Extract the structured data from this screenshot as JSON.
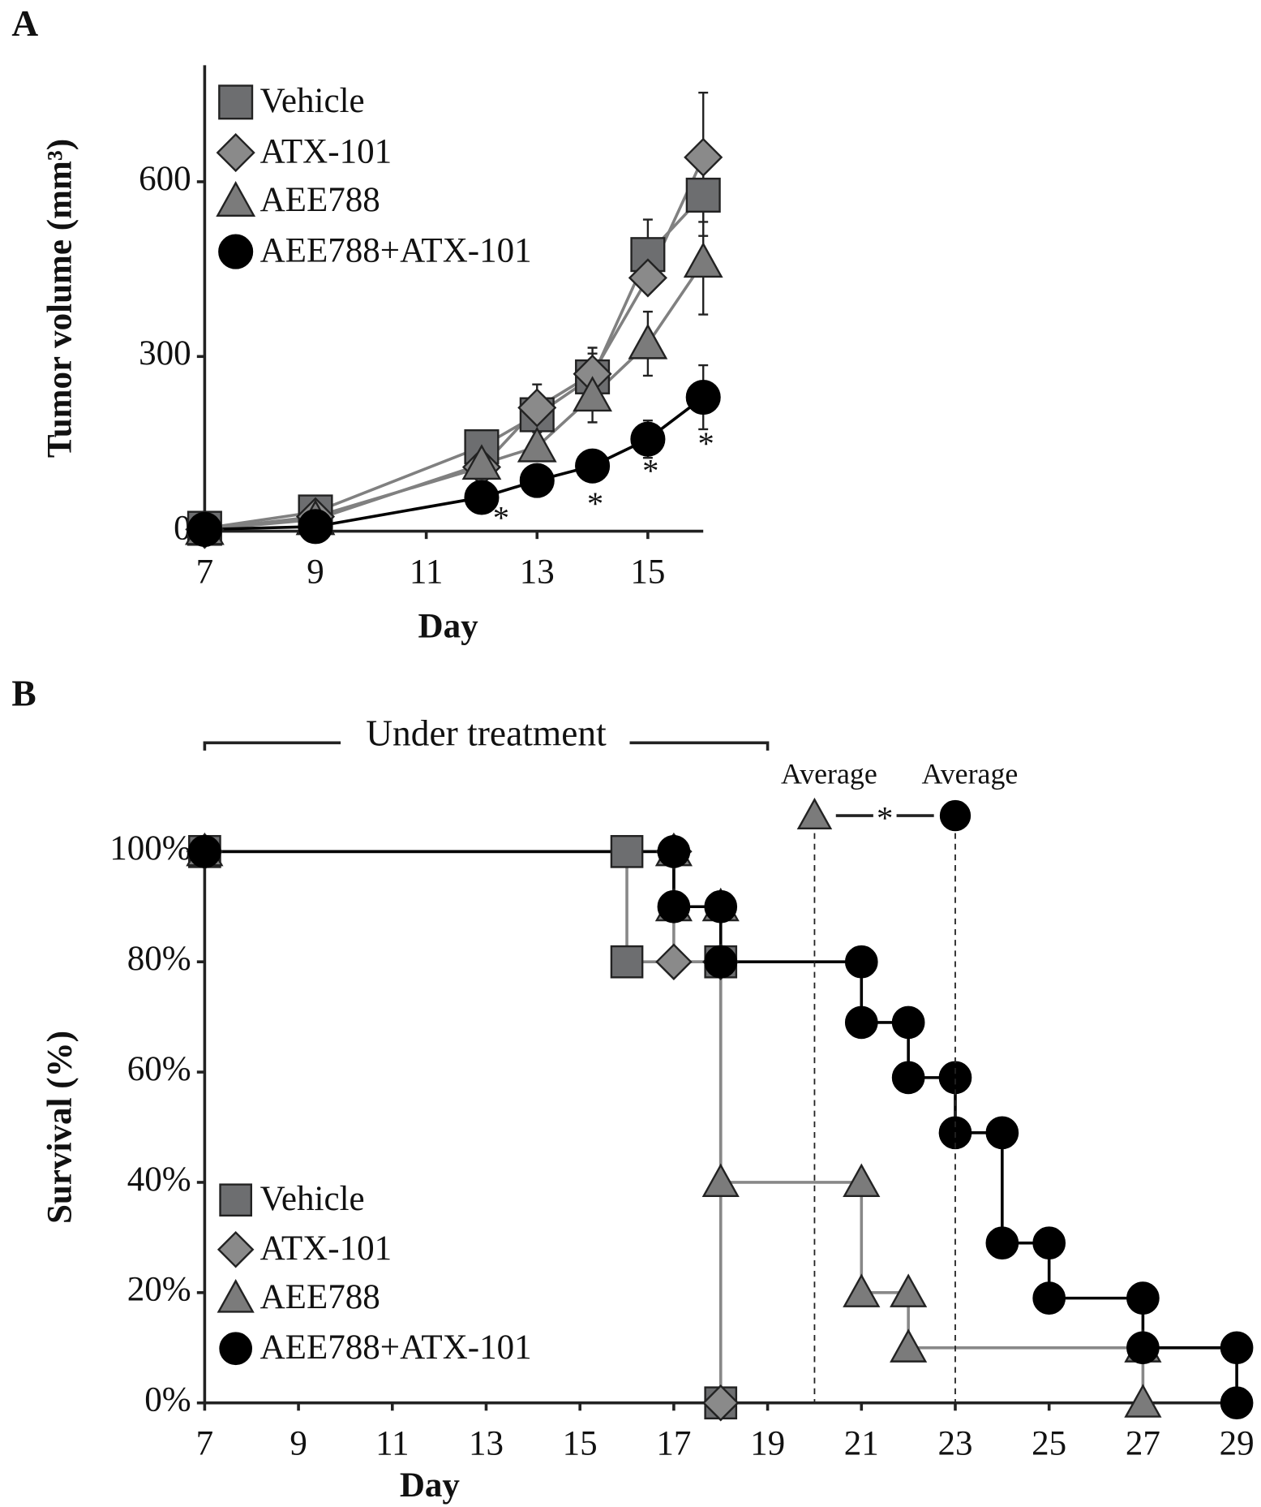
{
  "chart_data": [
    {
      "type": "line",
      "panel": "A",
      "x_label": "Day",
      "y_label": "Tumor volume (mm³)",
      "xlim": [
        7,
        16
      ],
      "xticks": [
        7,
        9,
        11,
        13,
        15
      ],
      "ylim": [
        0,
        800
      ],
      "yticks": [
        0,
        300,
        600
      ],
      "series": [
        {
          "name": "Vehicle",
          "marker": "square",
          "color": "#6d6e70",
          "line_color": "#808080",
          "x": [
            7,
            9,
            12,
            13,
            14,
            15,
            16
          ],
          "values": [
            5,
            33,
            145,
            200,
            265,
            475,
            577
          ],
          "errors": [
            null,
            null,
            8,
            30,
            40,
            60,
            70
          ]
        },
        {
          "name": "ATX-101",
          "marker": "diamond",
          "color": "#8a8a8a",
          "line_color": "#808080",
          "x": [
            7,
            9,
            12,
            13,
            14,
            15,
            16
          ],
          "values": [
            3,
            25,
            110,
            212,
            270,
            435,
            642
          ],
          "errors": [
            null,
            null,
            null,
            40,
            45,
            null,
            111
          ]
        },
        {
          "name": "AEE788",
          "marker": "triangle",
          "color": "#7b7b7b",
          "line_color": "#808080",
          "x": [
            7,
            9,
            12,
            13,
            14,
            15,
            16
          ],
          "values": [
            3,
            20,
            115,
            145,
            232,
            322,
            462
          ],
          "errors": [
            null,
            null,
            null,
            null,
            45,
            55,
            90
          ]
        },
        {
          "name": "AEE788+ATX-101",
          "marker": "circle",
          "color": "#000000",
          "line_color": "#000000",
          "x": [
            7,
            9,
            12,
            13,
            14,
            15,
            16
          ],
          "values": [
            3,
            8,
            58,
            87,
            112,
            158,
            230
          ],
          "errors": [
            null,
            null,
            null,
            null,
            null,
            32,
            55
          ]
        }
      ],
      "annotations": [
        {
          "text": "*",
          "x": 12.35,
          "y": 17
        },
        {
          "text": "*",
          "x": 14.05,
          "y": 42
        },
        {
          "text": "*",
          "x": 15.05,
          "y": 98
        },
        {
          "text": "*",
          "x": 16.05,
          "y": 145
        }
      ]
    },
    {
      "type": "step",
      "panel": "B",
      "x_label": "Day",
      "y_label": "Survival (%)",
      "xlim": [
        7,
        29
      ],
      "xticks": [
        7,
        9,
        11,
        13,
        15,
        17,
        19,
        21,
        23,
        25,
        27,
        29
      ],
      "ylim": [
        0,
        100
      ],
      "yticks": [
        {
          "value": 0,
          "label": "0%"
        },
        {
          "value": 20,
          "label": "20%"
        },
        {
          "value": 40,
          "label": "40%"
        },
        {
          "value": 60,
          "label": "60%"
        },
        {
          "value": 80,
          "label": "80%"
        },
        {
          "value": 100,
          "label": "100%"
        }
      ],
      "series": [
        {
          "name": "Vehicle",
          "marker": "square",
          "color": "#6d6e70",
          "line_color": "#888888",
          "x": [
            7,
            16,
            16,
            18,
            18
          ],
          "values": [
            100,
            100,
            80,
            80,
            0
          ]
        },
        {
          "name": "ATX-101",
          "marker": "diamond",
          "color": "#8a8a8a",
          "line_color": "#888888",
          "x": [
            7,
            17,
            17,
            18,
            18
          ],
          "values": [
            100,
            100,
            80,
            80,
            0
          ]
        },
        {
          "name": "AEE788",
          "marker": "triangle",
          "color": "#7b7b7b",
          "line_color": "#888888",
          "x": [
            7,
            17,
            17,
            18,
            18,
            21,
            21,
            22,
            22,
            27,
            27
          ],
          "values": [
            100,
            100,
            90,
            90,
            40,
            40,
            20,
            20,
            10,
            10,
            0
          ]
        },
        {
          "name": "AEE788+ATX-101",
          "marker": "circle",
          "color": "#000000",
          "line_color": "#000000",
          "x": [
            7,
            17,
            17,
            18,
            18,
            21,
            21,
            22,
            22,
            23,
            23,
            24,
            24,
            25,
            25,
            27,
            27,
            29,
            29
          ],
          "values": [
            100,
            100,
            90,
            90,
            80,
            80,
            69,
            69,
            59,
            59,
            49,
            49,
            29,
            29,
            19,
            19,
            10,
            10,
            0
          ]
        }
      ],
      "treatment": {
        "text": "Under treatment",
        "x": [
          7,
          19
        ]
      },
      "averages": [
        {
          "label": "Average",
          "x": 20,
          "series": 2
        },
        {
          "label": "Average",
          "x": 23,
          "series": 3
        }
      ],
      "significance": "*"
    }
  ]
}
